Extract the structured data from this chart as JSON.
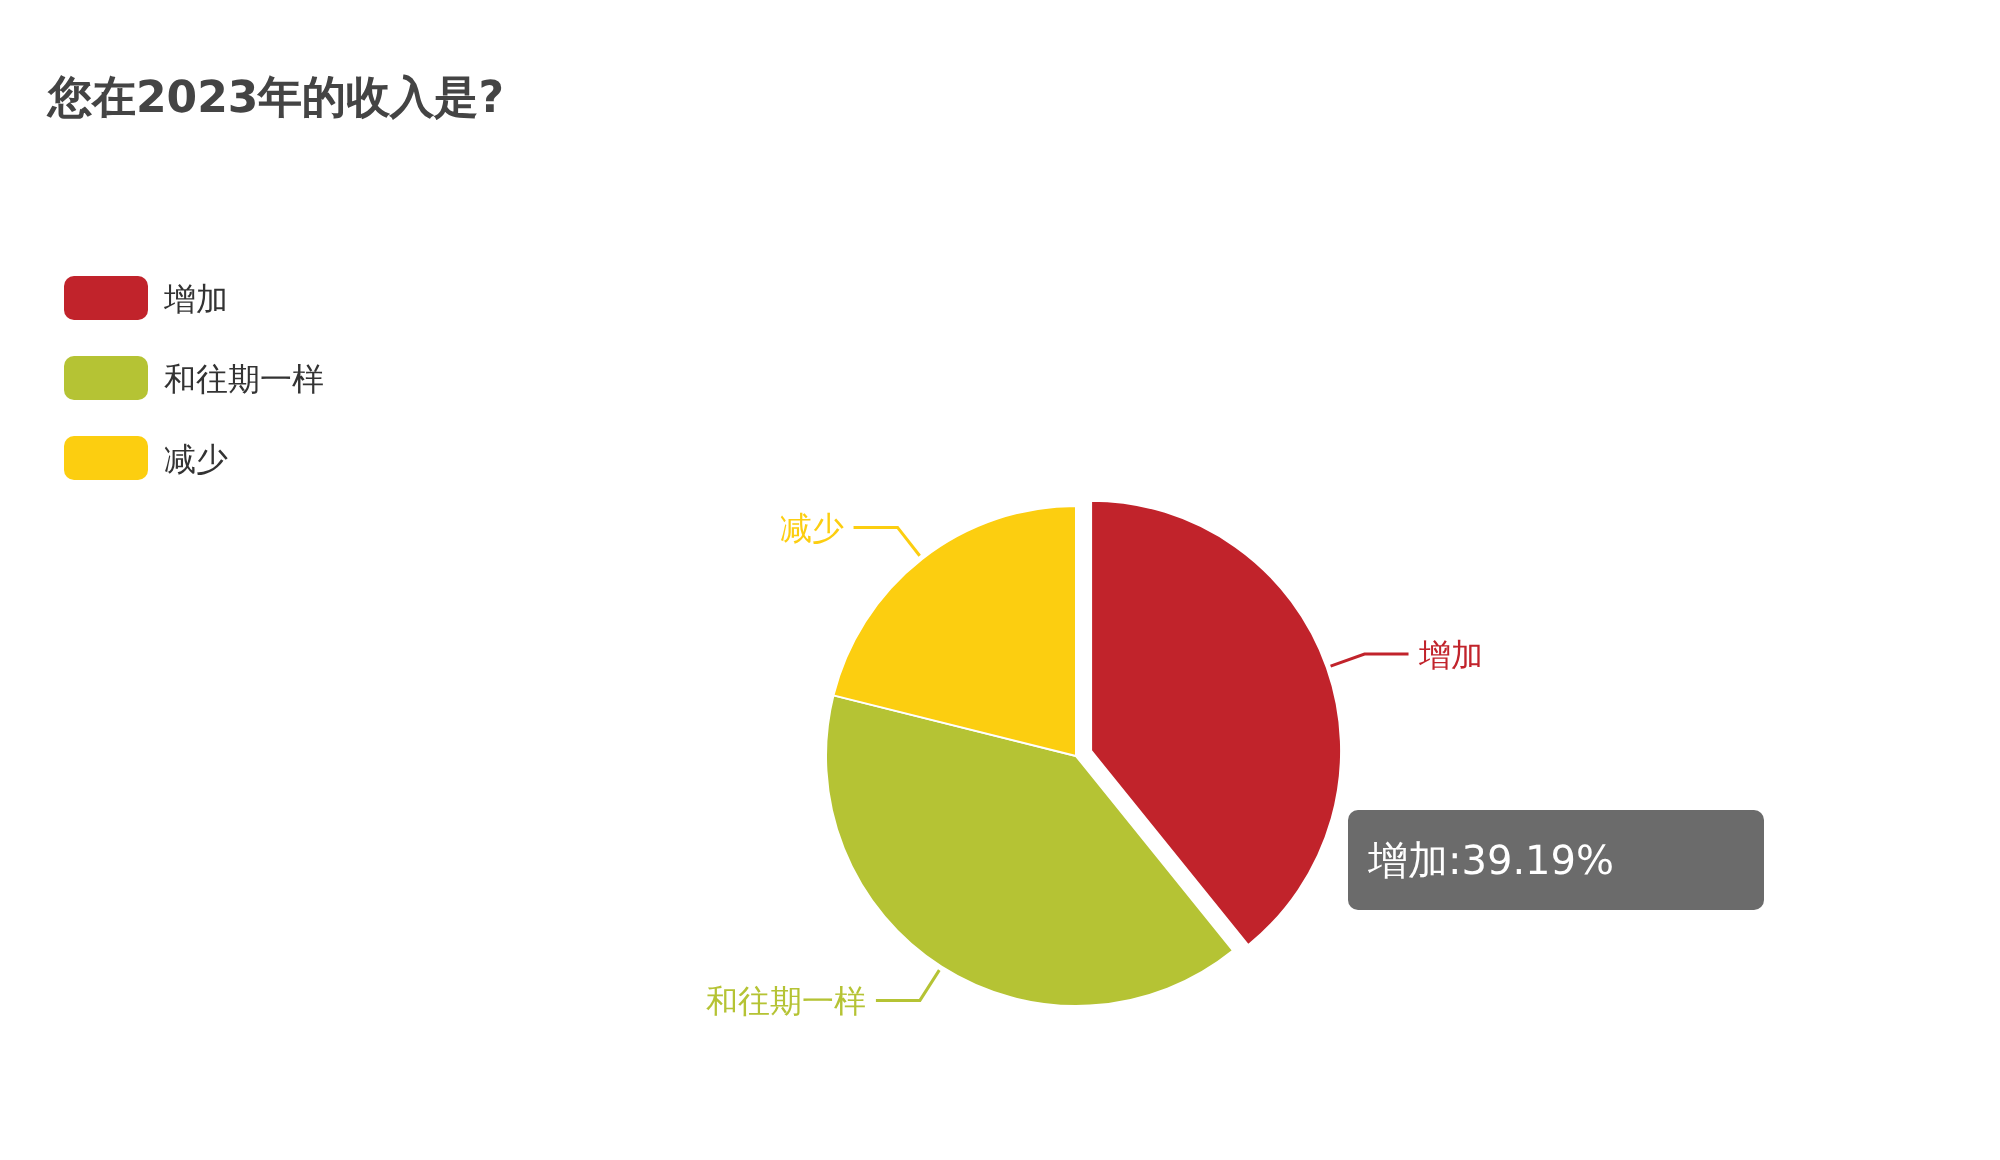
{
  "chart_data": {
    "type": "pie",
    "title": "您在2023年的收入是?",
    "categories": [
      "增加",
      "和往期一样",
      "减少"
    ],
    "values": [
      39.19,
      39.71,
      21.1
    ],
    "colors": [
      "#c1232b",
      "#b5c334",
      "#fcce10"
    ],
    "legend": "top left",
    "annotations": [
      "增加:39.19%"
    ]
  }
}
